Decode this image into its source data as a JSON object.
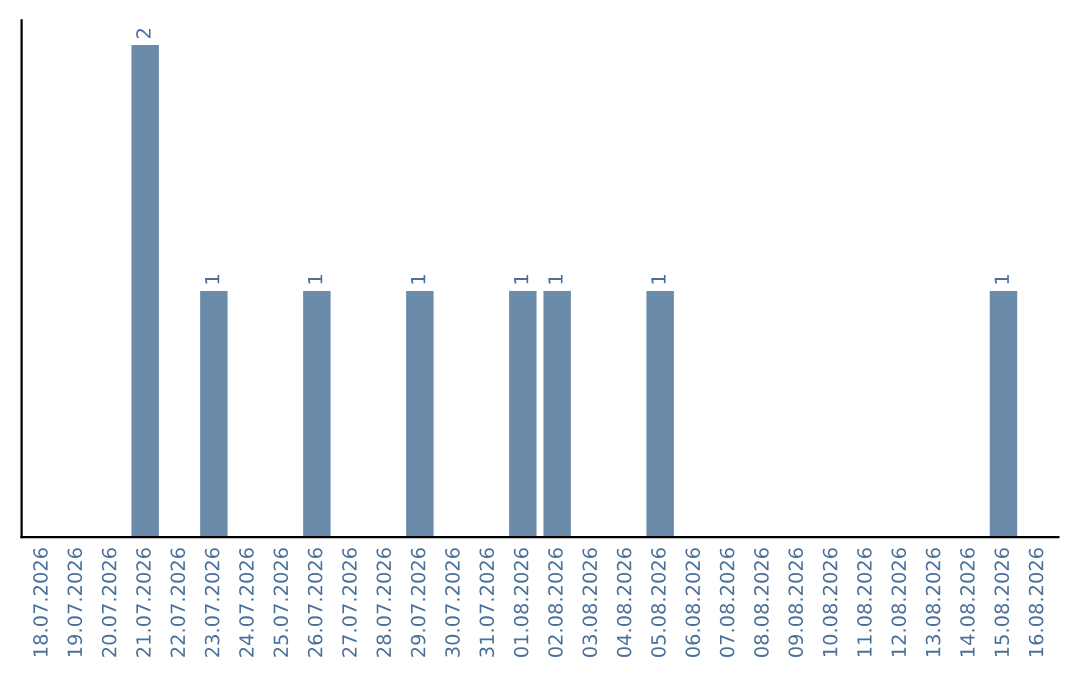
{
  "chart_data": {
    "type": "bar",
    "categories": [
      "18.07.2026",
      "19.07.2026",
      "20.07.2026",
      "21.07.2026",
      "22.07.2026",
      "23.07.2026",
      "24.07.2026",
      "25.07.2026",
      "26.07.2026",
      "27.07.2026",
      "28.07.2026",
      "29.07.2026",
      "30.07.2026",
      "31.07.2026",
      "01.08.2026",
      "02.08.2026",
      "03.08.2026",
      "04.08.2026",
      "05.08.2026",
      "06.08.2026",
      "07.08.2026",
      "08.08.2026",
      "09.08.2026",
      "10.08.2026",
      "11.08.2026",
      "12.08.2026",
      "13.08.2026",
      "14.08.2026",
      "15.08.2026",
      "16.08.2026"
    ],
    "values": [
      0,
      0,
      0,
      2,
      0,
      1,
      0,
      0,
      1,
      0,
      0,
      1,
      0,
      0,
      1,
      1,
      0,
      0,
      1,
      0,
      0,
      0,
      0,
      0,
      0,
      0,
      0,
      0,
      1,
      0
    ],
    "color": "#6a8caa",
    "value_labels": [
      null,
      null,
      null,
      "2",
      null,
      "1",
      null,
      null,
      "1",
      null,
      null,
      "1",
      null,
      null,
      "1",
      "1",
      null,
      null,
      "1",
      null,
      null,
      null,
      null,
      null,
      null,
      null,
      null,
      null,
      "1",
      null
    ],
    "tick_labels": "x",
    "grid": false,
    "legend": false
  }
}
